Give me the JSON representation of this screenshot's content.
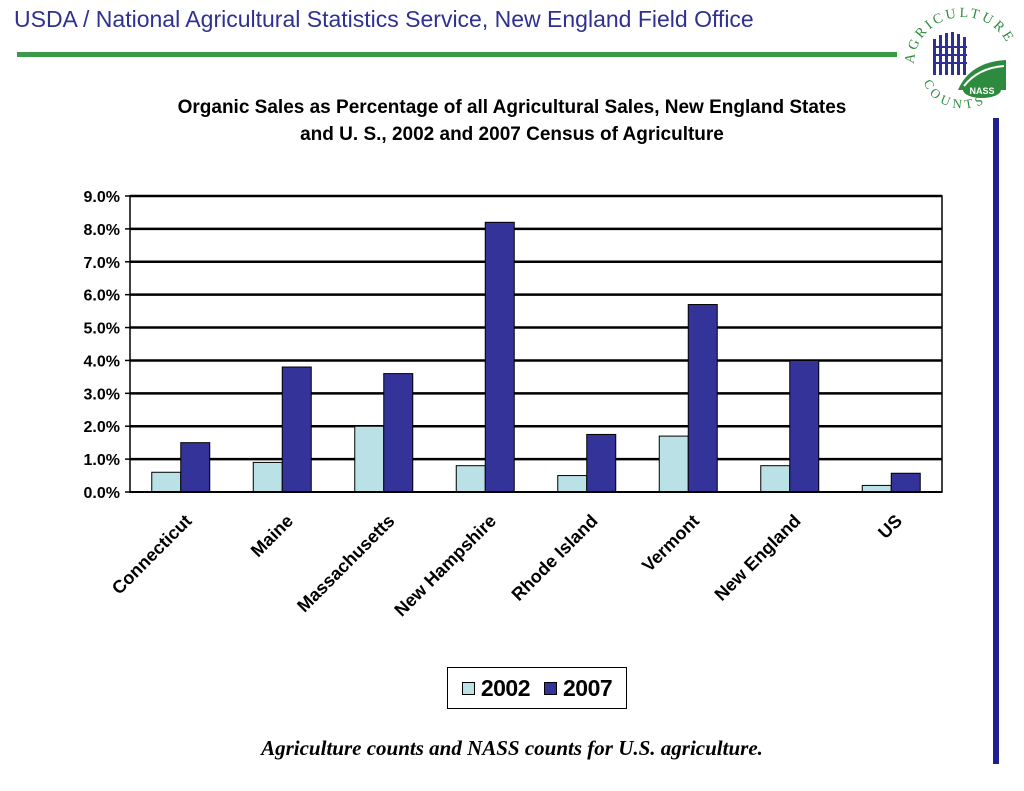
{
  "header": {
    "title": "USDA / National Agricultural Statistics Service, New England Field Office"
  },
  "logo": {
    "arc_top": "AGRICULTURE",
    "arc_bottom": "COUNTS",
    "badge": "NASS",
    "icon": "agriculture-counts-logo",
    "colors": {
      "green": "#2e8b3e",
      "blue": "#2e3192"
    }
  },
  "footer": {
    "text": "Agriculture counts and NASS counts for U.S. agriculture."
  },
  "colors": {
    "header_text": "#2e3192",
    "header_rule": "#3a9a47",
    "right_rule": "#1f1f8f",
    "series_2002": "#b9e1e6",
    "series_2007": "#333399"
  },
  "chart_data": {
    "type": "bar",
    "title_lines": [
      "Organic Sales as Percentage of all Agricultural Sales, New England States",
      "and U. S., 2002 and 2007 Census of Agriculture"
    ],
    "categories": [
      "Connecticut",
      "Maine",
      "Massachusetts",
      "New Hampshire",
      "Rhode Island",
      "Vermont",
      "New England",
      "US"
    ],
    "series": [
      {
        "name": "2002",
        "values": [
          0.6,
          0.9,
          2.0,
          0.8,
          0.5,
          1.7,
          0.8,
          0.2
        ]
      },
      {
        "name": "2007",
        "values": [
          1.5,
          3.8,
          3.6,
          8.2,
          1.75,
          5.7,
          4.0,
          0.57
        ]
      }
    ],
    "ylim": [
      0,
      9
    ],
    "yticks": [
      "0.0%",
      "1.0%",
      "2.0%",
      "3.0%",
      "4.0%",
      "5.0%",
      "6.0%",
      "7.0%",
      "8.0%",
      "9.0%"
    ],
    "xlabel": "",
    "ylabel": "",
    "grid": true,
    "legend_position": "bottom"
  }
}
